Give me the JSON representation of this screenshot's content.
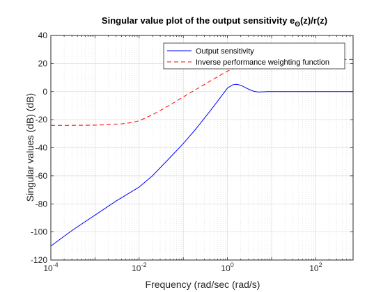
{
  "chart_data": {
    "type": "line",
    "title": "Singular value plot of the output sensitivity e",
    "title_sub": "Θ",
    "title_suffix": "(z)/r(z)",
    "xlabel": "Frequency (rad/sec (rad/s)",
    "ylabel": "Singular values (dB) (dB)",
    "x_scale": "log",
    "xlim": [
      0.0001,
      700
    ],
    "ylim": [
      -120,
      40
    ],
    "x_ticks": [
      {
        "value": 0.0001,
        "base": "10",
        "exp": "-4"
      },
      {
        "value": 0.01,
        "base": "10",
        "exp": "-2"
      },
      {
        "value": 1,
        "base": "10",
        "exp": "0"
      },
      {
        "value": 100,
        "base": "10",
        "exp": "2"
      }
    ],
    "y_ticks": [
      {
        "value": 40,
        "label": "40"
      },
      {
        "value": 20,
        "label": "20"
      },
      {
        "value": 0,
        "label": "0"
      },
      {
        "value": -20,
        "label": "-20"
      },
      {
        "value": -40,
        "label": "-40"
      },
      {
        "value": -60,
        "label": "-60"
      },
      {
        "value": -80,
        "label": "-80"
      },
      {
        "value": -100,
        "label": "-100"
      },
      {
        "value": -120,
        "label": "-120"
      }
    ],
    "grid": true,
    "legend_position": "top-right",
    "series": [
      {
        "name": "Output sensitivity",
        "color": "#0000ff",
        "style": "solid",
        "x": [
          0.0001,
          0.0003,
          0.001,
          0.003,
          0.01,
          0.02,
          0.05,
          0.1,
          0.2,
          0.4,
          0.7,
          1.0,
          1.3,
          1.6,
          2.0,
          2.5,
          3.2,
          4.0,
          5.0,
          6.0,
          8.0,
          10,
          20,
          50,
          100,
          300,
          700
        ],
        "y": [
          -110,
          -99,
          -88,
          -78,
          -68,
          -60,
          -47,
          -37,
          -26,
          -14,
          -4,
          2.5,
          4.8,
          5.2,
          4.5,
          3.0,
          1.3,
          0.2,
          -0.3,
          -0.2,
          0.0,
          0.0,
          0.0,
          0.0,
          0.0,
          0.0,
          0.0
        ]
      },
      {
        "name": "Inverse performance weighting function",
        "color": "#ff0000",
        "style": "dashed",
        "x": [
          0.0001,
          0.0003,
          0.001,
          0.002,
          0.004,
          0.007,
          0.01,
          0.02,
          0.05,
          0.1,
          0.2,
          0.5,
          1,
          2,
          4,
          7,
          10,
          20,
          50,
          100,
          300,
          700
        ],
        "y": [
          -24,
          -24,
          -23.9,
          -23.6,
          -23,
          -22,
          -20.8,
          -16.5,
          -9.5,
          -3.8,
          1.8,
          9.2,
          14.6,
          18.5,
          20.8,
          21.8,
          22.1,
          22.5,
          22.7,
          22.8,
          22.9,
          23.0
        ]
      }
    ]
  }
}
